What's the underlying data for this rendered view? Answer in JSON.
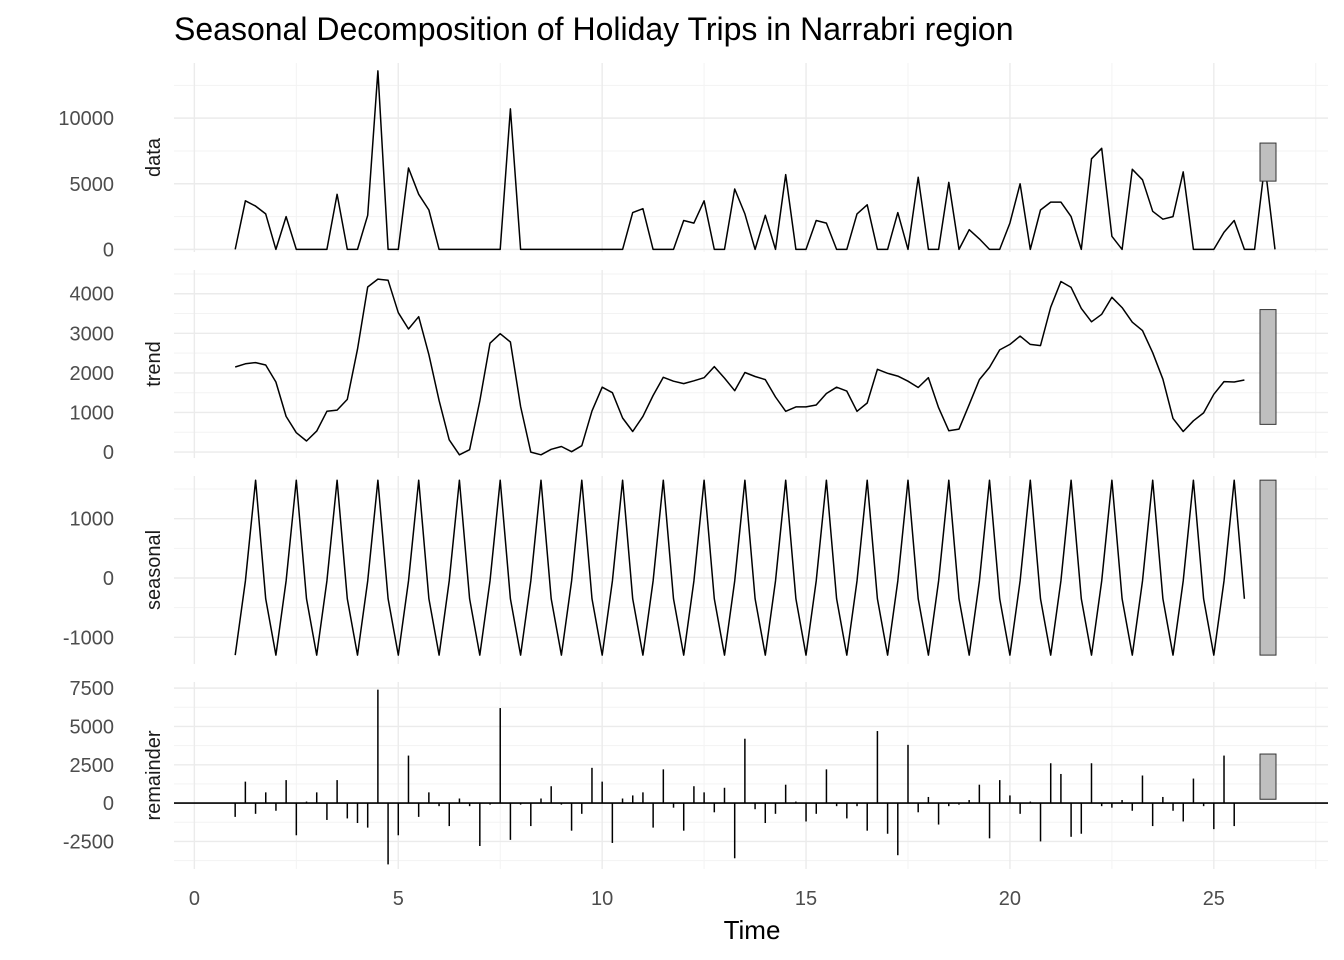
{
  "chart_data": {
    "type": "line",
    "title": "Seasonal Decomposition of Holiday Trips in Narrabri region",
    "xlabel": "Time",
    "xlim": [
      -0.5,
      27.8
    ],
    "xticks": [
      0,
      5,
      10,
      15,
      20,
      25
    ],
    "x_start": 1,
    "x_step": 0.25,
    "panels": [
      {
        "name": "data",
        "ylim": [
          -200,
          14200
        ],
        "yticks": [
          0,
          5000,
          10000
        ],
        "scale_bar_range": [
          5200,
          8100
        ],
        "values": [
          0,
          3700,
          3300,
          2700,
          0,
          2500,
          0,
          0,
          0,
          0,
          4200,
          0,
          0,
          2600,
          13600,
          0,
          0,
          6200,
          4200,
          3000,
          0,
          0,
          0,
          0,
          0,
          0,
          0,
          10700,
          0,
          0,
          0,
          0,
          0,
          0,
          0,
          0,
          0,
          0,
          0,
          2800,
          3100,
          0,
          0,
          0,
          2200,
          2000,
          3700,
          0,
          0,
          4600,
          2700,
          0,
          2600,
          0,
          5700,
          0,
          0,
          2200,
          2000,
          0,
          0,
          2700,
          3400,
          0,
          0,
          2800,
          0,
          5500,
          0,
          0,
          5100,
          0,
          1500,
          800,
          0,
          0,
          2000,
          5000,
          0,
          3000,
          3600,
          3600,
          2500,
          0,
          6900,
          7700,
          1000,
          0,
          6100,
          5300,
          2900,
          2300,
          2500,
          5900,
          0,
          0,
          0,
          1300,
          2200,
          0,
          0,
          6500,
          0
        ]
      },
      {
        "name": "trend",
        "ylim": [
          -150,
          4600
        ],
        "yticks": [
          0,
          1000,
          2000,
          3000,
          4000
        ],
        "scale_bar_range": [
          700,
          3600
        ],
        "values": [
          2150,
          2230,
          2260,
          2200,
          1770,
          900,
          490,
          280,
          530,
          1030,
          1060,
          1330,
          2600,
          4170,
          4370,
          4340,
          3520,
          3110,
          3420,
          2460,
          1300,
          310,
          -70,
          60,
          1290,
          2750,
          2990,
          2780,
          1150,
          0,
          -70,
          70,
          140,
          10,
          160,
          1040,
          1640,
          1500,
          860,
          520,
          900,
          1430,
          1890,
          1790,
          1730,
          1800,
          1880,
          2160,
          1870,
          1550,
          2010,
          1910,
          1830,
          1390,
          1030,
          1140,
          1140,
          1190,
          1480,
          1640,
          1540,
          1030,
          1240,
          2090,
          1990,
          1920,
          1790,
          1630,
          1880,
          1120,
          540,
          580,
          1200,
          1830,
          2140,
          2580,
          2720,
          2930,
          2720,
          2690,
          3660,
          4310,
          4160,
          3630,
          3290,
          3480,
          3910,
          3650,
          3280,
          3070,
          2510,
          1840,
          850,
          520,
          790,
          990,
          1460,
          1780,
          1770,
          1820
        ]
      },
      {
        "name": "seasonal",
        "ylim": [
          -1450,
          1720
        ],
        "yticks": [
          -1000,
          0,
          1000
        ],
        "scale_bar_range": [
          -1300,
          1650
        ],
        "values": [
          -1300,
          -50,
          1650,
          -350,
          -1300,
          -50,
          1650,
          -350,
          -1300,
          -50,
          1650,
          -350,
          -1300,
          -50,
          1650,
          -350,
          -1300,
          -50,
          1650,
          -350,
          -1300,
          -50,
          1650,
          -350,
          -1300,
          -50,
          1650,
          -350,
          -1300,
          -50,
          1650,
          -350,
          -1300,
          -50,
          1650,
          -350,
          -1300,
          -50,
          1650,
          -350,
          -1300,
          -50,
          1650,
          -350,
          -1300,
          -50,
          1650,
          -350,
          -1300,
          -50,
          1650,
          -350,
          -1300,
          -50,
          1650,
          -350,
          -1300,
          -50,
          1650,
          -350,
          -1300,
          -50,
          1650,
          -350,
          -1300,
          -50,
          1650,
          -350,
          -1300,
          -50,
          1650,
          -350,
          -1300,
          -50,
          1650,
          -350,
          -1300,
          -50,
          1650,
          -350,
          -1300,
          -50,
          1650,
          -350,
          -1300,
          -50,
          1650,
          -350,
          -1300,
          -50,
          1650,
          -350,
          -1300,
          -50,
          1650,
          -350,
          -1300,
          -50,
          1650,
          -350
        ]
      },
      {
        "name": "remainder",
        "ylim": [
          -4300,
          7900
        ],
        "yticks": [
          -2500,
          0,
          2500,
          5000,
          7500
        ],
        "scale_bar_range": [
          250,
          3200
        ],
        "values": [
          -900,
          1400,
          -700,
          700,
          -500,
          1500,
          -2100,
          100,
          700,
          -1100,
          1500,
          -1000,
          -1300,
          -1600,
          7400,
          -4000,
          -2100,
          3100,
          -900,
          700,
          -200,
          -1500,
          300,
          -200,
          -2800,
          -100,
          6200,
          -2400,
          -100,
          -1500,
          300,
          1100,
          -100,
          -1800,
          -700,
          2300,
          1400,
          -2600,
          300,
          500,
          700,
          -1600,
          2200,
          -300,
          -1800,
          1100,
          700,
          -600,
          1000,
          -3600,
          4200,
          -400,
          -1300,
          -700,
          1200,
          100,
          -1200,
          -700,
          2200,
          -200,
          -1000,
          -200,
          -1800,
          4700,
          -2000,
          -3400,
          3800,
          -600,
          400,
          -1400,
          -200,
          -100,
          200,
          1200,
          -2300,
          1500,
          500,
          -700,
          100,
          -2500,
          2600,
          1900,
          -2200,
          -2000,
          2600,
          -200,
          -300,
          200,
          -500,
          1800,
          -1500,
          400,
          -500,
          -1200,
          1600,
          -200,
          -1700,
          3100,
          -1500
        ]
      }
    ]
  }
}
